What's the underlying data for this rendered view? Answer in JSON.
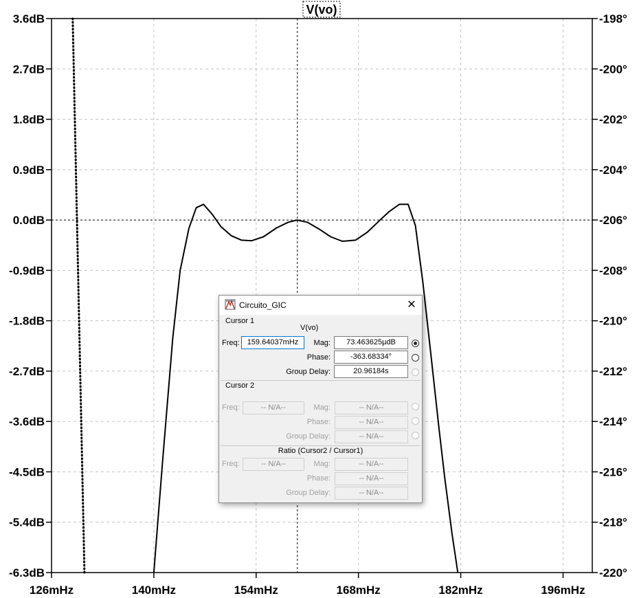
{
  "plot": {
    "trace_name": "V(vo)",
    "left_axis_ticks": [
      "3.6dB",
      "2.7dB",
      "1.8dB",
      "0.9dB",
      "0.0dB",
      "-0.9dB",
      "-1.8dB",
      "-2.7dB",
      "-3.6dB",
      "-4.5dB",
      "-5.4dB",
      "-6.3dB"
    ],
    "right_axis_ticks": [
      "-198°",
      "-200°",
      "-202°",
      "-204°",
      "-206°",
      "-208°",
      "-210°",
      "-212°",
      "-214°",
      "-216°",
      "-218°",
      "-220°"
    ],
    "x_axis_ticks": [
      "126mHz",
      "140mHz",
      "154mHz",
      "168mHz",
      "182mHz",
      "196mHz"
    ]
  },
  "chart_data": {
    "type": "line",
    "x_unit": "mHz",
    "xlim": [
      126,
      200
    ],
    "ylim_left_db": [
      -6.3,
      3.6
    ],
    "ylim_right_deg": [
      -220,
      -198
    ],
    "grid": true,
    "series": [
      {
        "name": "V(vo)",
        "style": "solid",
        "axis": "left",
        "x": [
          140.0,
          141.2,
          142.6,
          143.6,
          144.8,
          145.8,
          146.8,
          148.0,
          149.2,
          150.6,
          152.0,
          153.4,
          155.0,
          156.8,
          158.4,
          159.6,
          161.0,
          162.6,
          164.2,
          165.8,
          167.6,
          169.2,
          170.8,
          172.2,
          173.6,
          174.8,
          175.8,
          176.8,
          178.0,
          179.0,
          179.8,
          180.8,
          181.6
        ],
        "y": [
          -6.3,
          -4.3,
          -2.1,
          -0.9,
          -0.15,
          0.22,
          0.28,
          0.1,
          -0.12,
          -0.28,
          -0.36,
          -0.37,
          -0.3,
          -0.14,
          -0.04,
          0.0,
          -0.04,
          -0.16,
          -0.3,
          -0.38,
          -0.36,
          -0.22,
          -0.02,
          0.15,
          0.28,
          0.28,
          -0.1,
          -1.1,
          -2.5,
          -3.7,
          -4.6,
          -5.6,
          -6.3
        ]
      },
      {
        "name": "V(vo)",
        "style": "dotted",
        "axis": "right",
        "x": [
          128.9,
          130.5
        ],
        "y": [
          -198,
          -220
        ]
      }
    ],
    "cursor_x": 159.64
  },
  "dialog": {
    "title": "Circuito_GIC",
    "cursor1": {
      "group_label": "Cursor 1",
      "trace_label": "V(vo)",
      "freq_label": "Freq:",
      "freq_value": "159.64037mHz",
      "mag_label": "Mag:",
      "mag_value": "73.463625µdB",
      "phase_label": "Phase:",
      "phase_value": "-363.68334°",
      "group_delay_label": "Group Delay:",
      "group_delay_value": "20.96184s"
    },
    "cursor2": {
      "group_label": "Cursor 2",
      "freq_label": "Freq:",
      "freq_value": "-- N/A--",
      "mag_label": "Mag:",
      "mag_value": "-- N/A--",
      "phase_label": "Phase:",
      "phase_value": "-- N/A--",
      "group_delay_label": "Group Delay:",
      "group_delay_value": "-- N/A--"
    },
    "ratio": {
      "group_label": "Ratio (Cursor2 / Cursor1)",
      "freq_label": "Freq:",
      "freq_value": "-- N/A--",
      "mag_label": "Mag:",
      "mag_value": "-- N/A--",
      "phase_label": "Phase:",
      "phase_value": "-- N/A--",
      "group_delay_label": "Group Delay:",
      "group_delay_value": "-- N/A--"
    }
  }
}
